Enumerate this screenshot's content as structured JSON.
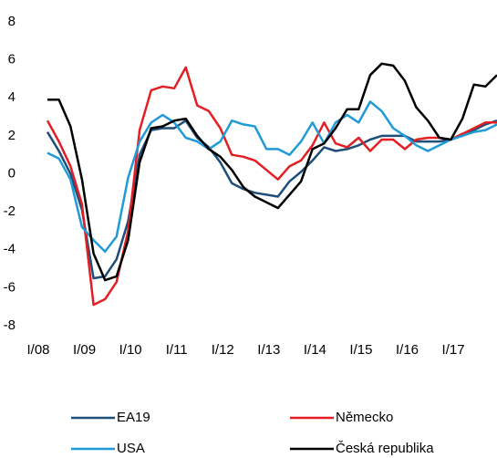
{
  "chart_data": {
    "type": "line",
    "categories": [
      "I/08",
      null,
      null,
      null,
      "I/09",
      null,
      null,
      null,
      "I/10",
      null,
      null,
      null,
      "I/11",
      null,
      null,
      null,
      "I/12",
      null,
      null,
      null,
      "I/13",
      null,
      null,
      null,
      "I/14",
      null,
      null,
      null,
      "I/15",
      null,
      null,
      null,
      "I/16",
      null,
      null,
      null,
      "I/17",
      null,
      null,
      null
    ],
    "series": [
      {
        "name": "EA19",
        "color": "#1f4e79",
        "values": [
          2.2,
          1.2,
          0.0,
          -1.9,
          -5.5,
          -5.4,
          -4.5,
          -2.5,
          1.0,
          2.3,
          2.4,
          2.4,
          2.8,
          1.9,
          1.4,
          0.6,
          -0.5,
          -0.8,
          -1.0,
          -1.1,
          -1.2,
          -0.4,
          0.1,
          0.7,
          1.4,
          1.2,
          1.3,
          1.5,
          1.8,
          2.0,
          2.0,
          2.0,
          1.7,
          1.7,
          1.7,
          1.8,
          2.1,
          2.3,
          2.6,
          2.8
        ]
      },
      {
        "name": "Německo",
        "color": "#e31e24",
        "values": [
          2.8,
          1.7,
          0.4,
          -1.6,
          -6.9,
          -6.6,
          -5.7,
          -3.0,
          2.3,
          4.4,
          4.6,
          4.5,
          5.6,
          3.6,
          3.3,
          2.4,
          1.0,
          0.9,
          0.7,
          0.2,
          -0.3,
          0.4,
          0.7,
          1.5,
          2.7,
          1.6,
          1.4,
          1.9,
          1.2,
          1.8,
          1.8,
          1.3,
          1.8,
          1.9,
          1.9,
          1.8,
          2.1,
          2.4,
          2.7,
          2.7
        ]
      },
      {
        "name": "USA",
        "color": "#1f9bd7",
        "values": [
          1.1,
          0.8,
          -0.3,
          -2.8,
          -3.5,
          -4.1,
          -3.3,
          -0.2,
          1.7,
          2.7,
          3.1,
          2.7,
          1.9,
          1.7,
          1.3,
          1.7,
          2.8,
          2.6,
          2.5,
          1.3,
          1.3,
          1.0,
          1.7,
          2.7,
          1.6,
          2.7,
          3.1,
          2.7,
          3.8,
          3.3,
          2.4,
          2.0,
          1.5,
          1.2,
          1.5,
          1.8,
          2.0,
          2.2,
          2.3,
          2.6
        ]
      },
      {
        "name": "Česká republika",
        "color": "#000000",
        "values": [
          3.9,
          3.9,
          2.5,
          -0.3,
          -4.2,
          -5.6,
          -5.4,
          -3.5,
          0.6,
          2.4,
          2.5,
          2.8,
          2.9,
          2.0,
          1.3,
          0.9,
          0.2,
          -0.7,
          -1.2,
          -1.5,
          -1.8,
          -1.1,
          -0.4,
          1.3,
          1.6,
          2.4,
          3.4,
          3.4,
          5.2,
          5.8,
          5.7,
          4.9,
          3.5,
          2.8,
          1.9,
          1.8,
          2.9,
          4.7,
          4.6,
          5.2
        ]
      }
    ],
    "ylim": [
      -8,
      8
    ],
    "yticks": [
      -8,
      -6,
      -4,
      -2,
      0,
      2,
      4,
      6,
      8
    ],
    "grid": false
  }
}
